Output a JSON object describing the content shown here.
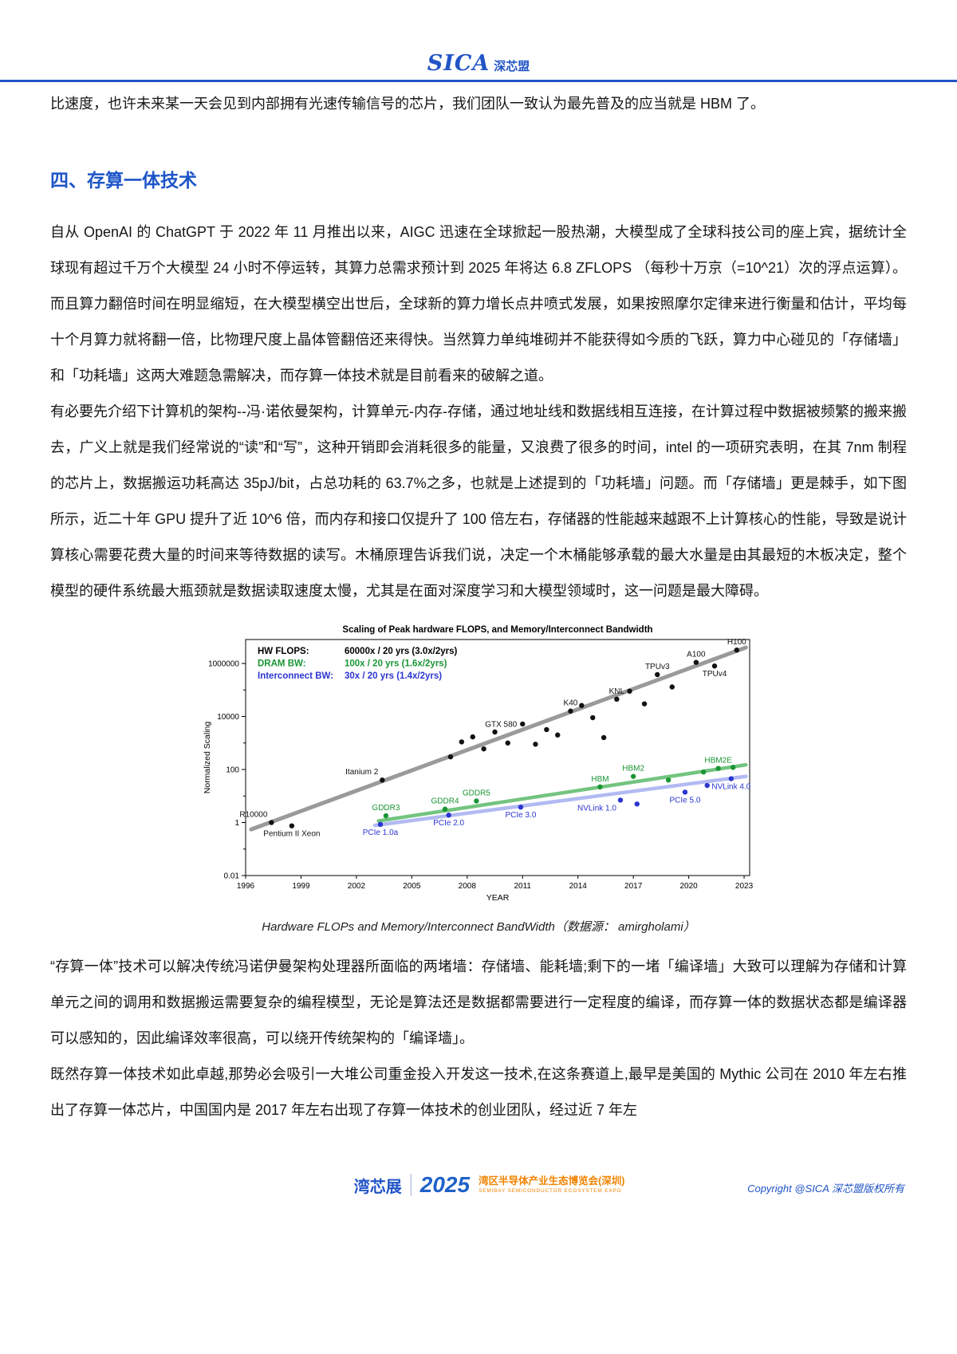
{
  "page": {
    "header": {
      "logo_sica": "SICA",
      "logo_cn": "深芯盟"
    },
    "lead": "比速度，也许未来某一天会见到内部拥有光速传输信号的芯片，我们团队一致认为最先普及的应当就是 HBM 了。",
    "section_heading": "四、存算一体技术",
    "paragraphs": {
      "p1": "自从 OpenAI 的 ChatGPT 于 2022 年 11 月推出以来，AIGC 迅速在全球掀起一股热潮，大模型成了全球科技公司的座上宾，据统计全球现有超过千万个大模型 24 小时不停运转，其算力总需求预计到 2025 年将达 6.8 ZFLOPS （每秒十万京（=10^21）次的浮点运算）。而且算力翻倍时间在明显缩短，在大模型横空出世后，全球新的算力增长点井喷式发展，如果按照摩尔定律来进行衡量和估计，平均每十个月算力就将翻一倍，比物理尺度上晶体管翻倍还来得快。当然算力单纯堆砌并不能获得如今质的飞跃，算力中心碰见的「存储墙」和「功耗墙」这两大难题急需解决，而存算一体技术就是目前看来的破解之道。",
      "p2": "有必要先介绍下计算机的架构--冯·诺依曼架构，计算单元-内存-存储，通过地址线和数据线相互连接，在计算过程中数据被频繁的搬来搬去，广义上就是我们经常说的“读”和“写”，这种开销即会消耗很多的能量，又浪费了很多的时间，intel 的一项研究表明，在其 7nm 制程的芯片上，数据搬运功耗高达 35pJ/bit，占总功耗的 63.7%之多，也就是上述提到的「功耗墙」问题。而「存储墙」更是棘手，如下图所示，近二十年 GPU 提升了近 10^6 倍，而内存和接口仅提升了 100 倍左右，存储器的性能越来越跟不上计算核心的性能，导致是说计算核心需要花费大量的时间来等待数据的读写。木桶原理告诉我们说，决定一个木桶能够承载的最大水量是由其最短的木板决定，整个模型的硬件系统最大瓶颈就是数据读取速度太慢，尤其是在面对深度学习和大模型领域时，这一问题是最大障碍。",
      "p3": "“存算一体”技术可以解决传统冯诺伊曼架构处理器所面临的两堵墙：存储墙、能耗墙;剩下的一堵「编译墙」大致可以理解为存储和计算单元之间的调用和数据搬运需要复杂的编程模型，无论是算法还是数据都需要进行一定程度的编译，而存算一体的数据状态都是编译器可以感知的，因此编译效率很高，可以绕开传统架构的「编译墙」。",
      "p4": "既然存算一体技术如此卓越,那势必会吸引一大堆公司重金投入开发这一技术,在这条赛道上,最早是美国的 Mythic 公司在 2010 年左右推出了存算一体芯片，中国国内是 2017 年左右出现了存算一体技术的创业团队，经过近 7 年左"
    },
    "figure_caption": "Hardware FLOPs and Memory/Interconnect BandWidth（数据源： amirgholami）",
    "footer": {
      "expo_name": "湾芯展",
      "expo_year": "2025",
      "expo_line1": "湾区半导体产业生态博览会(深圳)",
      "expo_line2": "SEMIBAY SEMICONDUCTOR ECOSYSTEM EXPO",
      "copyright": "Copyright @SICA 深芯盟版权所有"
    },
    "colors": {
      "accent_blue": "#2254c6",
      "heading_blue": "#1e55c8",
      "footer_orange": "#f08300"
    }
  },
  "chart_data": {
    "type": "scatter",
    "title": "Scaling of Peak hardware FLOPS, and Memory/Interconnect Bandwidth",
    "xlabel": "YEAR",
    "ylabel": "Normalized Scaling",
    "x_scale": "linear",
    "y_scale": "log",
    "xlim": [
      1996,
      2023.3
    ],
    "ylim": [
      0.01,
      8000000
    ],
    "xticks": [
      1996,
      1999,
      2002,
      2005,
      2008,
      2011,
      2014,
      2017,
      2020,
      2023
    ],
    "yticks": [
      0.01,
      1,
      100,
      10000,
      1000000
    ],
    "ytick_labels": [
      "0.01",
      "1",
      "100",
      "10000",
      "1000000"
    ],
    "grid": false,
    "legend_position": "top-left",
    "legend": [
      {
        "label": "HW FLOPS:",
        "value": "60000x / 20 yrs (3.0x/2yrs)",
        "color": "#000000"
      },
      {
        "label": "DRAM BW:",
        "value": "100x / 20 yrs (1.6x/2yrs)",
        "color": "#1a9634"
      },
      {
        "label": "Interconnect BW:",
        "value": "30x / 20 yrs (1.4x/2yrs)",
        "color": "#2b35cf"
      }
    ],
    "series": [
      {
        "name": "HW FLOPS",
        "color": "#111111",
        "trend": {
          "x": [
            1996.3,
            2023.1
          ],
          "y": [
            0.55,
            4000000
          ],
          "color": "#8f8f8f",
          "width": 5,
          "opacity": 0.9
        },
        "points": [
          {
            "x": 1997.4,
            "y": 1.0,
            "label": "R10000",
            "pos": "above-left"
          },
          {
            "x": 1998.5,
            "y": 0.75,
            "label": "Pentium II Xeon",
            "pos": "below"
          },
          {
            "x": 2003.4,
            "y": 40,
            "label": "Itanium 2",
            "pos": "above-left"
          },
          {
            "x": 2007.1,
            "y": 300
          },
          {
            "x": 2007.7,
            "y": 1100
          },
          {
            "x": 2008.3,
            "y": 1700
          },
          {
            "x": 2008.9,
            "y": 600
          },
          {
            "x": 2009.5,
            "y": 2600
          },
          {
            "x": 2010.2,
            "y": 1000
          },
          {
            "x": 2011.0,
            "y": 5200,
            "label": "GTX 580",
            "pos": "left"
          },
          {
            "x": 2011.7,
            "y": 900
          },
          {
            "x": 2012.3,
            "y": 3200
          },
          {
            "x": 2012.9,
            "y": 2000
          },
          {
            "x": 2013.6,
            "y": 16000,
            "label": "K40",
            "pos": "above"
          },
          {
            "x": 2014.2,
            "y": 26000
          },
          {
            "x": 2014.8,
            "y": 9000
          },
          {
            "x": 2015.4,
            "y": 1600
          },
          {
            "x": 2016.1,
            "y": 45000,
            "label": "KNL",
            "pos": "above"
          },
          {
            "x": 2016.8,
            "y": 90000
          },
          {
            "x": 2017.6,
            "y": 30000
          },
          {
            "x": 2018.3,
            "y": 380000,
            "label": "TPUv3",
            "pos": "above"
          },
          {
            "x": 2019.1,
            "y": 130000
          },
          {
            "x": 2020.4,
            "y": 1100000,
            "label": "A100",
            "pos": "above"
          },
          {
            "x": 2021.4,
            "y": 800000,
            "label": "TPUv4",
            "pos": "below"
          },
          {
            "x": 2022.6,
            "y": 3200000,
            "label": "H100",
            "pos": "above"
          }
        ]
      },
      {
        "name": "DRAM BW",
        "color": "#1a9634",
        "trend": {
          "x": [
            2003.2,
            2023.1
          ],
          "y": [
            1.15,
            150
          ],
          "color": "#44b054",
          "width": 4.5,
          "opacity": 0.75
        },
        "points": [
          {
            "x": 2003.6,
            "y": 1.8,
            "label": "GDDR3",
            "pos": "above"
          },
          {
            "x": 2006.8,
            "y": 3.2,
            "label": "GDDR4",
            "pos": "above"
          },
          {
            "x": 2008.5,
            "y": 6.5,
            "label": "GDDR5",
            "pos": "above"
          },
          {
            "x": 2015.2,
            "y": 22,
            "label": "HBM",
            "pos": "above"
          },
          {
            "x": 2017.0,
            "y": 55,
            "label": "HBM2",
            "pos": "above"
          },
          {
            "x": 2018.9,
            "y": 40
          },
          {
            "x": 2020.8,
            "y": 80
          },
          {
            "x": 2021.6,
            "y": 110,
            "label": "HBM2E",
            "pos": "above"
          },
          {
            "x": 2022.4,
            "y": 120
          }
        ]
      },
      {
        "name": "Interconnect BW",
        "color": "#2b35cf",
        "trend": {
          "x": [
            2003.0,
            2023.1
          ],
          "y": [
            0.78,
            55
          ],
          "color": "#aeb6f2",
          "width": 4.5,
          "opacity": 0.95
        },
        "points": [
          {
            "x": 2003.3,
            "y": 0.85,
            "label": "PCIe 1.0a",
            "pos": "below"
          },
          {
            "x": 2007.0,
            "y": 1.9,
            "label": "PCIe 2.0",
            "pos": "below"
          },
          {
            "x": 2010.9,
            "y": 3.8,
            "label": "PCIe 3.0",
            "pos": "below"
          },
          {
            "x": 2016.3,
            "y": 7,
            "label": "NVLink 1.0",
            "pos": "below-left"
          },
          {
            "x": 2017.2,
            "y": 5
          },
          {
            "x": 2019.8,
            "y": 14,
            "label": "PCIe 5.0",
            "pos": "below"
          },
          {
            "x": 2021.0,
            "y": 25
          },
          {
            "x": 2022.3,
            "y": 45,
            "label": "NVLink 4.0",
            "pos": "below"
          }
        ]
      }
    ]
  }
}
